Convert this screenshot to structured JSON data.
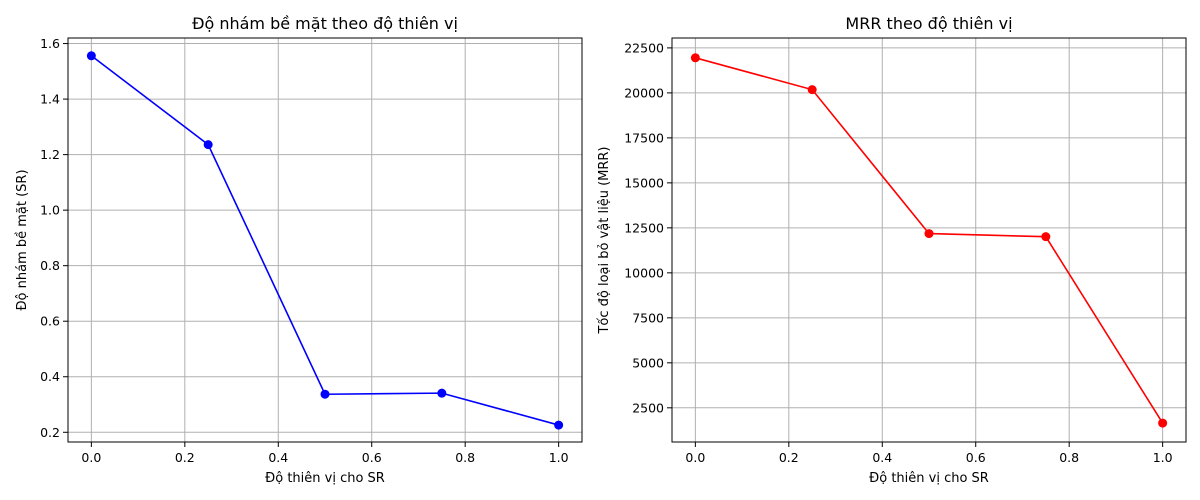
{
  "chart_data": [
    {
      "type": "line",
      "title": "Độ nhám bề mặt theo độ thiên vị",
      "xlabel": "Độ thiên vị cho SR",
      "ylabel": "Độ nhám bề mặt (SR)",
      "xlim": [
        -0.05,
        1.05
      ],
      "ylim": [
        0.165,
        1.62
      ],
      "xticks": [
        0.0,
        0.2,
        0.4,
        0.6,
        0.8,
        1.0
      ],
      "xtick_labels": [
        "0.0",
        "0.2",
        "0.4",
        "0.6",
        "0.8",
        "1.0"
      ],
      "yticks": [
        0.2,
        0.4,
        0.6,
        0.8,
        1.0,
        1.2,
        1.4,
        1.6
      ],
      "ytick_labels": [
        "0.2",
        "0.4",
        "0.6",
        "0.8",
        "1.0",
        "1.2",
        "1.4",
        "1.6"
      ],
      "grid": true,
      "color": "#0000ff",
      "marker": "circle",
      "series": [
        {
          "x": [
            0.0,
            0.25,
            0.5,
            0.75,
            1.0
          ],
          "values": [
            1.556,
            1.236,
            0.337,
            0.341,
            0.226
          ]
        }
      ]
    },
    {
      "type": "line",
      "title": "MRR theo độ thiên vị",
      "xlabel": "Độ thiên vị cho SR",
      "ylabel": "Tốc độ loại bỏ vật liệu (MRR)",
      "xlim": [
        -0.05,
        1.05
      ],
      "ylim": [
        600,
        23050
      ],
      "xticks": [
        0.0,
        0.2,
        0.4,
        0.6,
        0.8,
        1.0
      ],
      "xtick_labels": [
        "0.0",
        "0.2",
        "0.4",
        "0.6",
        "0.8",
        "1.0"
      ],
      "yticks": [
        2500,
        5000,
        7500,
        10000,
        12500,
        15000,
        17500,
        20000,
        22500
      ],
      "ytick_labels": [
        "2500",
        "5000",
        "7500",
        "10000",
        "12500",
        "15000",
        "17500",
        "20000",
        "22500"
      ],
      "grid": true,
      "color": "#ff0000",
      "marker": "circle",
      "series": [
        {
          "x": [
            0.0,
            0.25,
            0.5,
            0.75,
            1.0
          ],
          "values": [
            21950,
            20180,
            12180,
            12010,
            1650
          ]
        }
      ]
    }
  ]
}
